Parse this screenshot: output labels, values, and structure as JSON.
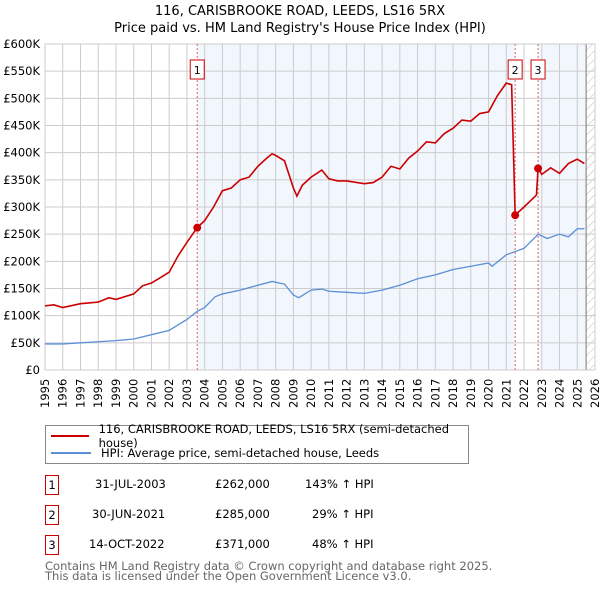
{
  "title": "116, CARISBROOKE ROAD, LEEDS, LS16 5RX",
  "subtitle": "Price paid vs. HM Land Registry's House Price Index (HPI)",
  "chart_data": {
    "type": "line",
    "title": "116, CARISBROOKE ROAD, LEEDS, LS16 5RX",
    "subtitle": "Price paid vs. HM Land Registry's House Price Index (HPI)",
    "xlim": [
      1995,
      2026
    ],
    "ylim": [
      0,
      600000
    ],
    "x_ticks": [
      "1995",
      "1996",
      "1997",
      "1998",
      "1999",
      "2000",
      "2001",
      "2002",
      "2003",
      "2004",
      "2005",
      "2006",
      "2007",
      "2008",
      "2009",
      "2010",
      "2011",
      "2012",
      "2013",
      "2014",
      "2015",
      "2016",
      "2017",
      "2018",
      "2019",
      "2020",
      "2021",
      "2022",
      "2023",
      "2024",
      "2025",
      "2026"
    ],
    "y_ticks": [
      {
        "v": 0,
        "l": "£0"
      },
      {
        "v": 50000,
        "l": "£50K"
      },
      {
        "v": 100000,
        "l": "£100K"
      },
      {
        "v": 150000,
        "l": "£150K"
      },
      {
        "v": 200000,
        "l": "£200K"
      },
      {
        "v": 250000,
        "l": "£250K"
      },
      {
        "v": 300000,
        "l": "£300K"
      },
      {
        "v": 350000,
        "l": "£350K"
      },
      {
        "v": 400000,
        "l": "£400K"
      },
      {
        "v": 450000,
        "l": "£450K"
      },
      {
        "v": 500000,
        "l": "£500K"
      },
      {
        "v": 550000,
        "l": "£550K"
      },
      {
        "v": 600000,
        "l": "£600K"
      }
    ],
    "grid": true,
    "series": [
      {
        "name": "116, CARISBROOKE ROAD, LEEDS, LS16 5RX (semi-detached house)",
        "color": "#cc0000",
        "x": [
          1995,
          1995.5,
          1996,
          1997,
          1998,
          1998.6,
          1999,
          2000,
          2000.5,
          2001,
          2001.5,
          2002,
          2002.5,
          2003,
          2003.58,
          2004,
          2004.5,
          2005,
          2005.5,
          2006,
          2006.5,
          2007,
          2007.5,
          2007.8,
          2008,
          2008.5,
          2009,
          2009.2,
          2009.5,
          2010,
          2010.6,
          2011,
          2011.5,
          2012,
          2013,
          2013.5,
          2014,
          2014.5,
          2015,
          2015.5,
          2016,
          2016.5,
          2017,
          2017.5,
          2018,
          2018.5,
          2019,
          2019.5,
          2020,
          2020.5,
          2021,
          2021.3,
          2021.5,
          2022,
          2022.7,
          2022.79,
          2023,
          2023.5,
          2024,
          2024.5,
          2025,
          2025.4
        ],
        "y": [
          118000,
          120000,
          115000,
          122000,
          125000,
          133000,
          130000,
          140000,
          155000,
          160000,
          170000,
          180000,
          210000,
          235000,
          262000,
          275000,
          300000,
          330000,
          335000,
          350000,
          355000,
          375000,
          390000,
          398000,
          395000,
          385000,
          335000,
          320000,
          340000,
          355000,
          368000,
          352000,
          348000,
          348000,
          343000,
          345000,
          355000,
          375000,
          370000,
          390000,
          403000,
          420000,
          418000,
          435000,
          445000,
          460000,
          458000,
          472000,
          475000,
          505000,
          528000,
          525000,
          285000,
          300000,
          322000,
          371000,
          360000,
          372000,
          362000,
          380000,
          388000,
          380000
        ]
      },
      {
        "name": "HPI: Average price, semi-detached house, Leeds",
        "color": "#5b8fd6",
        "x": [
          1995,
          1996,
          1997,
          1998,
          1999,
          2000,
          2001,
          2002,
          2003,
          2003.58,
          2004,
          2004.6,
          2005,
          2006,
          2007,
          2007.8,
          2008.5,
          2009,
          2009.3,
          2010,
          2010.6,
          2011,
          2012,
          2013,
          2014,
          2015,
          2016,
          2017,
          2018,
          2019,
          2020,
          2020.2,
          2021,
          2021.5,
          2022,
          2022.8,
          2023.3,
          2024,
          2024.5,
          2025,
          2025.4
        ],
        "y": [
          48000,
          48000,
          50000,
          52000,
          54000,
          57000,
          65000,
          73000,
          93000,
          108000,
          115000,
          135000,
          140000,
          147000,
          156000,
          163000,
          158000,
          138000,
          133000,
          147000,
          149000,
          145000,
          143000,
          141000,
          147000,
          156000,
          168000,
          175000,
          185000,
          191000,
          197000,
          191000,
          212000,
          218000,
          224000,
          250000,
          242000,
          250000,
          245000,
          260000,
          260000
        ]
      }
    ],
    "sales": [
      {
        "num": "1",
        "date": "31-JUL-2003",
        "price": "£262,000",
        "hpi": "143% ↑ HPI",
        "x": 2003.58,
        "y": 262000
      },
      {
        "num": "2",
        "date": "30-JUN-2021",
        "price": "£285,000",
        "hpi": "29% ↑ HPI",
        "x": 2021.5,
        "y": 285000
      },
      {
        "num": "3",
        "date": "14-OCT-2022",
        "price": "£371,000",
        "hpi": "48% ↑ HPI",
        "x": 2022.79,
        "y": 371000
      }
    ],
    "shaded": [
      [
        2003.58,
        2021.5
      ],
      [
        2022.79,
        2025.5
      ]
    ],
    "future_from": 2025.5
  },
  "footer": [
    "Contains HM Land Registry data © Crown copyright and database right 2025.",
    "This data is licensed under the Open Government Licence v3.0."
  ]
}
